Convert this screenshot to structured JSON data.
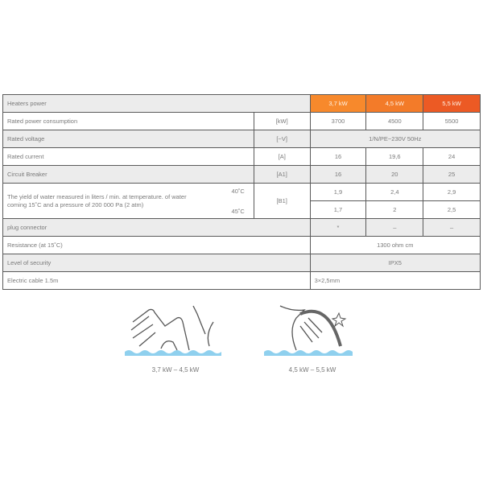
{
  "table": {
    "header": {
      "label": "Heaters power",
      "models": [
        "3,7 kW",
        "4,5 kW",
        "5,5 kW"
      ],
      "colors": [
        "#f7892c",
        "#f37b29",
        "#ec5a24"
      ]
    },
    "rows": {
      "power": {
        "label": "Rated power consumption",
        "unit": "[kW]",
        "values": [
          "3700",
          "4500",
          "5500"
        ]
      },
      "voltage": {
        "label": "Rated voltage",
        "unit": "[~V]",
        "value": "1/N/PE~230V 50Hz"
      },
      "current": {
        "label": "Rated current",
        "unit": "[A]",
        "values": [
          "16",
          "19,6",
          "24"
        ]
      },
      "breaker": {
        "label": "Circuit Breaker",
        "unit": "[A1]",
        "values": [
          "16",
          "20",
          "25"
        ]
      },
      "yield": {
        "label": "The yield of water measured in liters / min. at temperature. of water coming 15˚C and a pressure of 200 000 Pa (2 atm)",
        "unit": "[B1]",
        "temp1": "40˚C",
        "temp2": "45˚C",
        "values1": [
          "1,9",
          "2,4",
          "2,9"
        ],
        "values2": [
          "1,7",
          "2",
          "2,5"
        ]
      },
      "plug": {
        "label": "plug connector",
        "values": [
          "*",
          "–",
          "–"
        ]
      },
      "resistance": {
        "label": "Resistance (at 15˚C)",
        "value": "1300 ohm cm"
      },
      "security": {
        "label": "Level of security",
        "value": "IPX5"
      },
      "cable": {
        "label": "Electric cable 1.5m",
        "value": "3×2,5mm"
      }
    }
  },
  "icons": [
    {
      "name": "hands-washing-icon",
      "caption": "3,7 kW – 4,5 kW"
    },
    {
      "name": "hand-dish-washing-icon",
      "caption": "4,5 kW – 5,5 kW"
    }
  ]
}
